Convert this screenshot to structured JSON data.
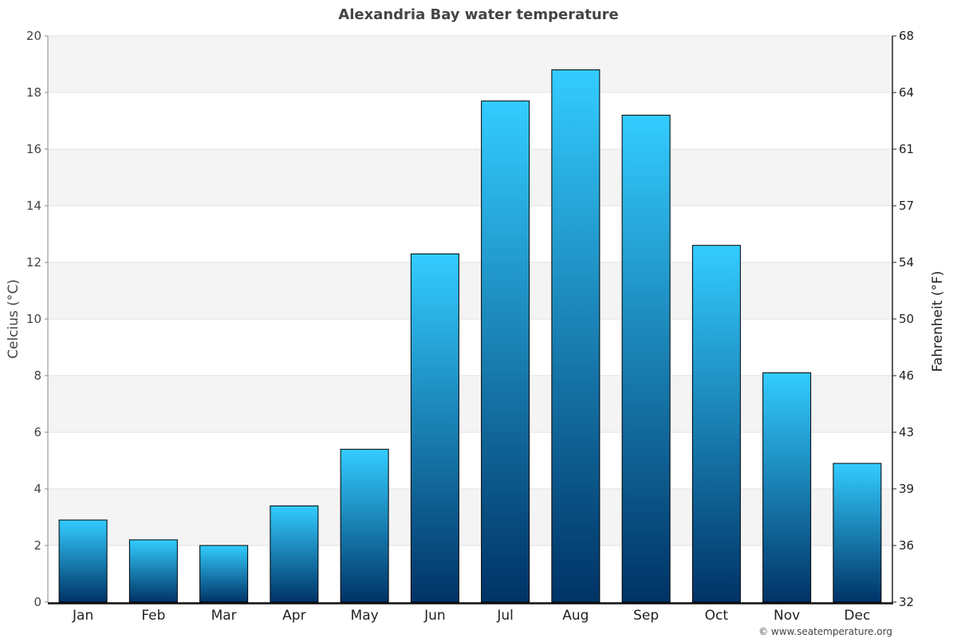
{
  "chart_data": {
    "type": "bar",
    "title": "Alexandria Bay water temperature",
    "categories": [
      "Jan",
      "Feb",
      "Mar",
      "Apr",
      "May",
      "Jun",
      "Jul",
      "Aug",
      "Sep",
      "Oct",
      "Nov",
      "Dec"
    ],
    "values": [
      2.9,
      2.2,
      2.0,
      3.4,
      5.4,
      12.3,
      17.7,
      18.8,
      17.2,
      12.6,
      8.1,
      4.9
    ],
    "ylabel": "Celcius (°C)",
    "ylabel_right": "Fahrenheit (°F)",
    "ylim": [
      0,
      20
    ],
    "yticks": [
      "0",
      "2",
      "4",
      "6",
      "8",
      "10",
      "12",
      "14",
      "16",
      "18",
      "20"
    ],
    "yticks_right": [
      "32",
      "36",
      "39",
      "43",
      "46",
      "50",
      "54",
      "57",
      "61",
      "64",
      "68"
    ],
    "grid": true,
    "colors": {
      "bar_top": "#33ccff",
      "bar_bottom": "#003366",
      "band": "#f4f4f4",
      "grid": "#e2e2e2"
    }
  },
  "credit": "© www.seatemperature.org"
}
